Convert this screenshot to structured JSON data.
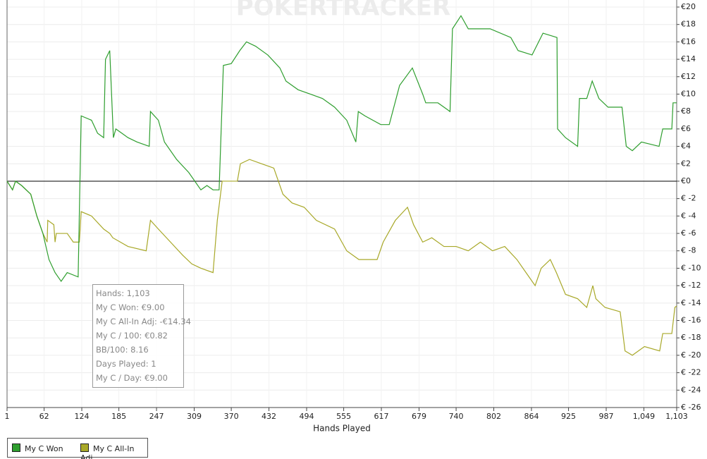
{
  "chart_data": {
    "type": "line",
    "watermark": "POKERTRACKER",
    "x_label": "Hands Played",
    "xlim": [
      1,
      1103
    ],
    "xticks": [
      1,
      62,
      124,
      185,
      247,
      309,
      370,
      432,
      494,
      555,
      617,
      679,
      740,
      802,
      864,
      925,
      987,
      {
        "value": 1049,
        "label": "1,049"
      },
      {
        "value": 1103,
        "label": "1,103"
      }
    ],
    "ylim": [
      -26,
      20
    ],
    "yticks": [
      {
        "value": 20,
        "label": "€20"
      },
      {
        "value": 18,
        "label": "€18"
      },
      {
        "value": 16,
        "label": "€16"
      },
      {
        "value": 14,
        "label": "€14"
      },
      {
        "value": 12,
        "label": "€12"
      },
      {
        "value": 10,
        "label": "€10"
      },
      {
        "value": 8,
        "label": "€8"
      },
      {
        "value": 6,
        "label": "€6"
      },
      {
        "value": 4,
        "label": "€4"
      },
      {
        "value": 2,
        "label": "€2"
      },
      {
        "value": 0,
        "label": "€0"
      },
      {
        "value": -2,
        "label": "€ -2"
      },
      {
        "value": -4,
        "label": "€ -4"
      },
      {
        "value": -6,
        "label": "€ -6"
      },
      {
        "value": -8,
        "label": "€ -8"
      },
      {
        "value": -10,
        "label": "€ -10"
      },
      {
        "value": -12,
        "label": "€ -12"
      },
      {
        "value": -14,
        "label": "€ -14"
      },
      {
        "value": -16,
        "label": "€ -16"
      },
      {
        "value": -18,
        "label": "€ -18"
      },
      {
        "value": -20,
        "label": "€ -20"
      },
      {
        "value": -22,
        "label": "€ -22"
      },
      {
        "value": -24,
        "label": "€ -24"
      },
      {
        "value": -26,
        "label": "€ -26"
      }
    ],
    "grid": true,
    "legend": "bottom-left",
    "tooltip": [
      "Hands: 1,103",
      "My C Won: €9.00",
      "My C All-In Adj: -€14.34",
      "My C / 100: €0.82",
      "BB/100: 8.16",
      "Days Played: 1",
      "My C / Day: €9.00"
    ],
    "series": [
      {
        "name": "My C Won",
        "color": "#2e9e2e",
        "x": [
          1,
          10,
          15,
          25,
          40,
          50,
          60,
          70,
          80,
          90,
          100,
          118,
          123,
          140,
          150,
          160,
          163,
          170,
          176,
          180,
          190,
          200,
          215,
          235,
          237,
          250,
          260,
          280,
          300,
          320,
          330,
          340,
          350,
          357,
          370,
          384,
          395,
          410,
          430,
          450,
          460,
          480,
          500,
          520,
          540,
          560,
          575,
          579,
          590,
          616,
          630,
          647,
          668,
          685,
          690,
          710,
          730,
          734,
          748,
          760,
          796,
          830,
          842,
          865,
          883,
          906,
          907,
          920,
          940,
          943,
          955,
          964,
          975,
          990,
          1013,
          1020,
          1030,
          1045,
          1074,
          1080,
          1095,
          1097,
          1103
        ],
        "values": [
          0,
          -1,
          0,
          -0.5,
          -1.5,
          -4,
          -6,
          -9,
          -10.5,
          -11.5,
          -10.5,
          -11,
          7.5,
          7,
          5.5,
          5,
          14,
          15,
          5,
          6,
          5.5,
          5,
          4.5,
          4,
          8,
          7,
          4.5,
          2.5,
          1,
          -1,
          -0.5,
          -1,
          -1,
          13.3,
          13.5,
          15,
          16,
          15.5,
          14.5,
          13,
          11.5,
          10.5,
          10,
          9.5,
          8.5,
          7,
          4.5,
          8,
          7.5,
          6.5,
          6.5,
          11,
          13,
          10,
          9,
          9,
          8,
          17.5,
          19,
          17.5,
          17.5,
          16.5,
          15,
          14.5,
          17,
          16.5,
          6,
          5,
          4,
          9.5,
          9.5,
          11.5,
          9.5,
          8.5,
          8.5,
          4,
          3.5,
          4.5,
          4,
          6,
          6,
          9,
          9
        ]
      },
      {
        "name": "My C All-In Adj",
        "color": "#a8a828",
        "x": [
          1,
          10,
          15,
          25,
          40,
          50,
          60,
          67,
          68,
          78,
          80,
          82,
          100,
          110,
          120,
          123,
          140,
          160,
          170,
          175,
          200,
          230,
          237,
          250,
          270,
          290,
          305,
          320,
          340,
          347,
          355,
          380,
          385,
          400,
          420,
          440,
          455,
          470,
          490,
          510,
          540,
          560,
          580,
          610,
          620,
          640,
          660,
          670,
          685,
          700,
          720,
          740,
          760,
          780,
          800,
          820,
          840,
          860,
          870,
          880,
          895,
          905,
          920,
          940,
          955,
          965,
          970,
          985,
          1010,
          1018,
          1030,
          1050,
          1075,
          1080,
          1095,
          1100,
          1103
        ],
        "values": [
          0,
          -1,
          0,
          -0.5,
          -1.5,
          -4,
          -6,
          -7,
          -4.5,
          -5,
          -7,
          -6,
          -6,
          -7,
          -7,
          -3.5,
          -4,
          -5.5,
          -6,
          -6.5,
          -7.5,
          -8,
          -4.5,
          -5.5,
          -7,
          -8.5,
          -9.5,
          -10,
          -10.5,
          -4.5,
          0,
          0,
          2,
          2.5,
          2,
          1.5,
          -1.5,
          -2.5,
          -3,
          -4.5,
          -5.5,
          -8,
          -9,
          -9,
          -7,
          -4.5,
          -3,
          -5,
          -7,
          -6.5,
          -7.5,
          -7.5,
          -8,
          -7,
          -8,
          -7.5,
          -9,
          -11,
          -12,
          -10,
          -9,
          -10.5,
          -13,
          -13.5,
          -14.5,
          -12,
          -13.5,
          -14.5,
          -15,
          -19.5,
          -20,
          -19,
          -19.5,
          -17.5,
          -17.5,
          -14.5,
          -14.34
        ]
      }
    ]
  }
}
